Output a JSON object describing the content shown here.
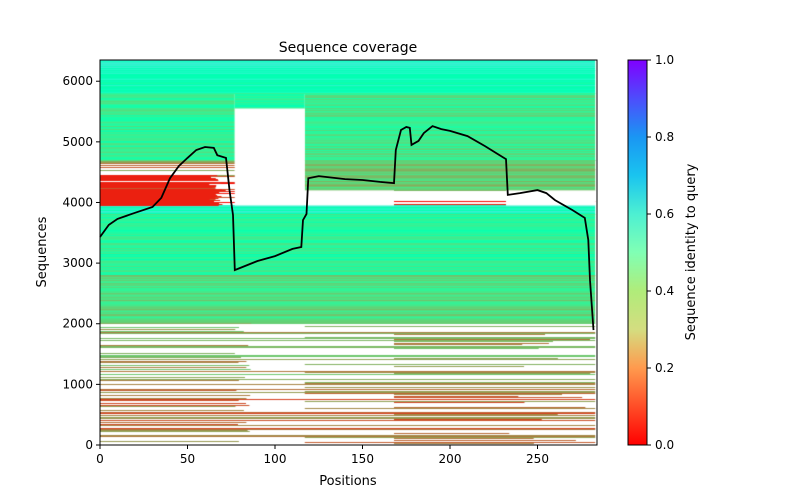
{
  "chart_data": {
    "type": "heatmap",
    "title": "Sequence coverage",
    "xlabel": "Positions",
    "ylabel": "Sequences",
    "xlim": [
      0,
      284
    ],
    "ylim": [
      0,
      6350
    ],
    "xticks": [
      0,
      50,
      100,
      150,
      200,
      250
    ],
    "yticks": [
      0,
      1000,
      2000,
      3000,
      4000,
      5000,
      6000
    ],
    "grid": false,
    "colorbar": {
      "label": "Sequence identity to query",
      "colormap": "rainbow_r",
      "range": [
        0.0,
        1.0
      ],
      "ticks": [
        "0.0",
        "0.2",
        "0.4",
        "0.6",
        "0.8",
        "1.0"
      ],
      "placement": "right"
    },
    "coverage_line": {
      "name": "coverage",
      "color": "#000000",
      "x": [
        0,
        5,
        10,
        20,
        30,
        35,
        40,
        45,
        50,
        55,
        60,
        65,
        67,
        72,
        74,
        76,
        77,
        80,
        90,
        100,
        110,
        115,
        116,
        118,
        119,
        125,
        140,
        150,
        160,
        168,
        169,
        172,
        175,
        177,
        178,
        182,
        185,
        190,
        195,
        200,
        210,
        220,
        230,
        232,
        233,
        240,
        250,
        255,
        260,
        270,
        277,
        279,
        280,
        282
      ],
      "y": [
        3430,
        3630,
        3730,
        3830,
        3925,
        4075,
        4400,
        4600,
        4735,
        4865,
        4915,
        4900,
        4780,
        4735,
        4205,
        3795,
        2885,
        2920,
        3035,
        3115,
        3235,
        3265,
        3710,
        3810,
        4400,
        4435,
        4385,
        4370,
        4340,
        4320,
        4865,
        5195,
        5245,
        5230,
        4950,
        5015,
        5145,
        5260,
        5210,
        5180,
        5095,
        4930,
        4750,
        4715,
        4125,
        4155,
        4205,
        4155,
        4040,
        3875,
        3745,
        3380,
        2720,
        1895
      ]
    },
    "identity_bands": [
      {
        "seq_from": 6180,
        "seq_to": 6350,
        "pos_from": 0,
        "pos_to": 283,
        "identity": 0.58
      },
      {
        "seq_from": 5800,
        "seq_to": 6180,
        "pos_from": 0,
        "pos_to": 283,
        "identity": 0.52
      },
      {
        "seq_from": 4700,
        "seq_to": 5800,
        "pos_from": 0,
        "pos_to": 77,
        "identity": 0.4
      },
      {
        "seq_from": 4700,
        "seq_to": 5800,
        "pos_from": 117,
        "pos_to": 283,
        "identity": 0.38
      },
      {
        "seq_from": 5550,
        "seq_to": 5800,
        "pos_from": 77,
        "pos_to": 117,
        "identity": 0.45
      },
      {
        "seq_from": 3950,
        "seq_to": 4450,
        "pos_from": 0,
        "pos_to": 66,
        "identity": 0.05
      },
      {
        "seq_from": 4450,
        "seq_to": 4700,
        "pos_from": 0,
        "pos_to": 77,
        "identity": 0.18
      },
      {
        "seq_from": 4200,
        "seq_to": 4700,
        "pos_from": 117,
        "pos_to": 283,
        "identity": 0.3
      },
      {
        "seq_from": 3800,
        "seq_to": 3950,
        "pos_from": 0,
        "pos_to": 283,
        "identity": 0.55
      },
      {
        "seq_from": 2800,
        "seq_to": 3800,
        "pos_from": 0,
        "pos_to": 283,
        "identity": 0.42
      },
      {
        "seq_from": 2000,
        "seq_to": 2800,
        "pos_from": 0,
        "pos_to": 283,
        "identity": 0.34
      },
      {
        "seq_from": 1000,
        "seq_to": 2000,
        "pos_from": 0,
        "pos_to": 283,
        "identity": 0.22
      },
      {
        "seq_from": 0,
        "seq_to": 1000,
        "pos_from": 0,
        "pos_to": 283,
        "identity": 0.15
      }
    ]
  }
}
